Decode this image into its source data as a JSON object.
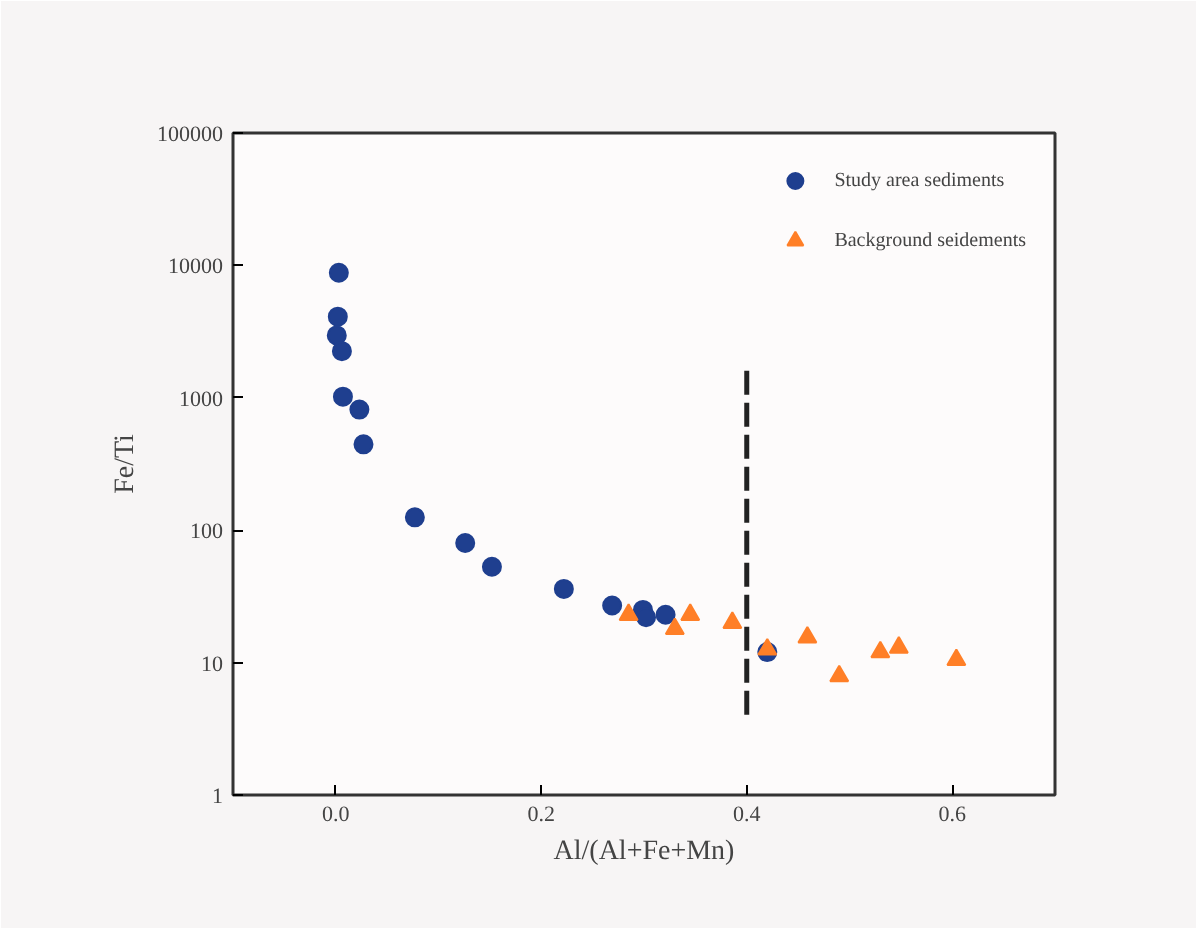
{
  "chart_data": {
    "type": "scatter",
    "xlabel": "Al/(Al+Fe+Mn)",
    "ylabel": "Fe/Ti",
    "xlim": [
      -0.1,
      0.7
    ],
    "xticks": [
      {
        "value": 0,
        "label": "0.0"
      },
      0.2,
      0.4,
      0.6
    ],
    "ylim": [
      1,
      100000
    ],
    "yticks": [
      1,
      10,
      100,
      1000,
      10000,
      100000
    ],
    "log": "y",
    "grid": false,
    "legend": "top right",
    "series": [
      {
        "name": "Study area sediments",
        "marker": "circle",
        "color": "#1f3f8f",
        "x": [
          0.003,
          0.002,
          0.001,
          0.006,
          0.007,
          0.023,
          0.027,
          0.077,
          0.126,
          0.152,
          0.222,
          0.269,
          0.299,
          0.302,
          0.321,
          0.42
        ],
        "values": [
          8800,
          4100,
          2960,
          2250,
          1020,
          815,
          445,
          125,
          80,
          53,
          36,
          27,
          25,
          22,
          23,
          12
        ]
      },
      {
        "name": "Background seidements",
        "marker": "triangle",
        "color": "#ff7f27",
        "x": [
          0.285,
          0.33,
          0.345,
          0.386,
          0.42,
          0.459,
          0.49,
          0.53,
          0.548,
          0.604
        ],
        "values": [
          23,
          18,
          23,
          20,
          12.6,
          15.5,
          7.9,
          12,
          13,
          10.5
        ]
      },
      {
        "type": "line",
        "line_style": "dashed",
        "color": "#222222",
        "x": [
          0.4,
          0.4
        ],
        "values": [
          1600,
          3.8
        ]
      }
    ]
  }
}
